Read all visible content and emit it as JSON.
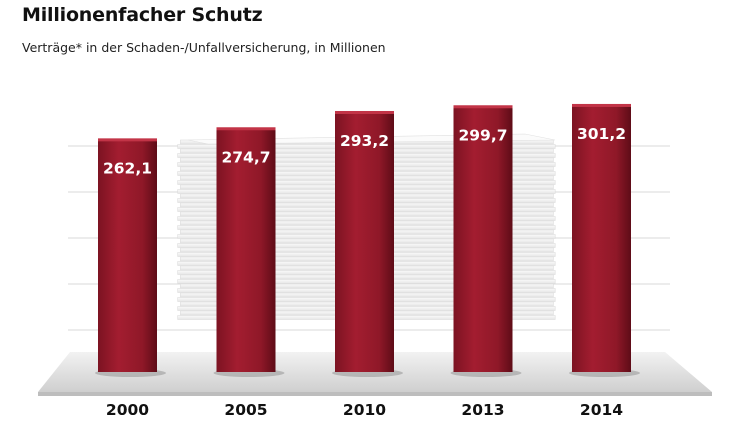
{
  "title": "Millionenfacher Schutz",
  "subtitle": "Verträge* in der Schaden-/Unfallversicherung, in Millionen",
  "colors": {
    "bar": "#a01c2e",
    "bar_dark": "#6e0f1c",
    "bar_light": "#c23447",
    "label": "#ffffff",
    "axis_text": "#111111",
    "grid": "#d8d8d8",
    "floor": "#e2e2e2",
    "paper": "#f4f4f4"
  },
  "chart_data": {
    "type": "bar",
    "categories": [
      "2000",
      "2005",
      "2010",
      "2013",
      "2014"
    ],
    "values": [
      262.1,
      274.7,
      293.2,
      299.7,
      301.2
    ],
    "value_labels": [
      "262,1",
      "274,7",
      "293,2",
      "299,7",
      "301,2"
    ],
    "title": "Millionenfacher Schutz",
    "subtitle": "Verträge* in der Schaden-/Unfallversicherung, in Millionen",
    "xlabel": "",
    "ylabel": "",
    "grid": true,
    "legend": "none"
  }
}
